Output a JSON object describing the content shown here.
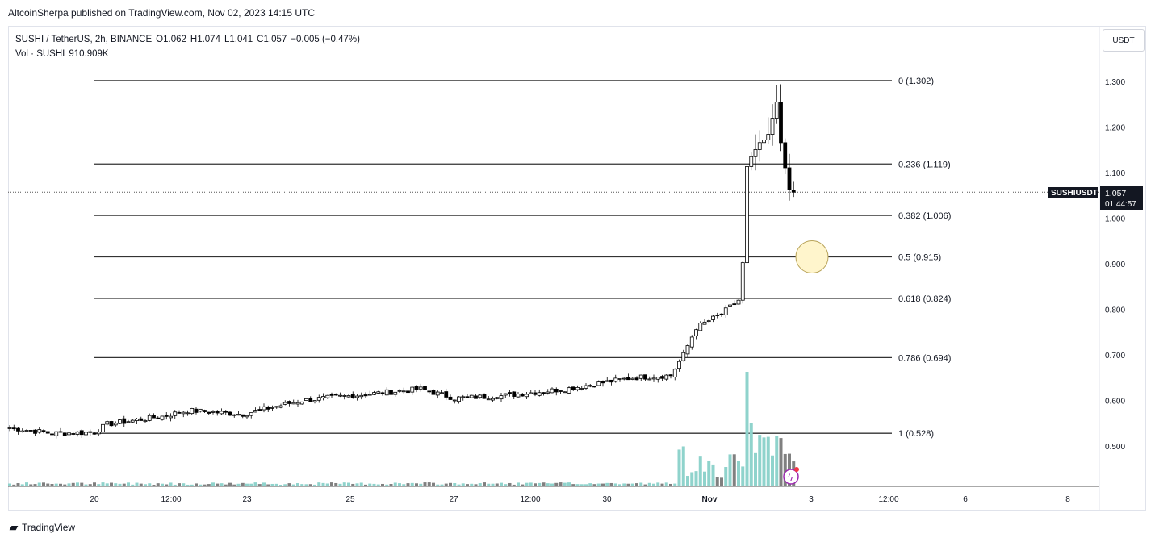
{
  "header": {
    "published": "AltcoinSherpa published on TradingView.com, Nov 02, 2023 14:15 UTC"
  },
  "legend": {
    "symbol": "SUSHI / TetherUS, 2h, BINANCE",
    "open": "O1.062",
    "high": "H1.074",
    "low": "L1.041",
    "close": "C1.057",
    "change": "−0.005 (−0.47%)",
    "volume_label": "Vol · SUSHI",
    "volume_value": "910.909K"
  },
  "currency_button": "USDT",
  "price_tag": {
    "symbol": "SUSHIUSDT",
    "price": "1.057",
    "countdown": "01:44:57"
  },
  "footer": {
    "brand": "TradingView"
  },
  "colors": {
    "up": "#ffffff",
    "down": "#000000",
    "vol_up": "#8fd3cc",
    "vol_down": "#808080",
    "fib": "#333333",
    "circle": "#fff5cc"
  },
  "chart_data": {
    "type": "candlestick",
    "ylim": [
      0.43,
      1.33
    ],
    "y_ticks": [
      "1.300",
      "1.200",
      "1.100",
      "1.000",
      "0.900",
      "0.800",
      "0.700",
      "0.600",
      "0.500"
    ],
    "x_ticks": [
      "20",
      "12:00",
      "23",
      "25",
      "27",
      "12:00",
      "30",
      "Nov",
      "3",
      "12:00",
      "6",
      "8"
    ],
    "fib_levels": [
      {
        "ratio": "0",
        "price": 1.302,
        "label": "0 (1.302)"
      },
      {
        "ratio": "0.236",
        "price": 1.119,
        "label": "0.236 (1.119)"
      },
      {
        "ratio": "0.382",
        "price": 1.006,
        "label": "0.382 (1.006)"
      },
      {
        "ratio": "0.5",
        "price": 0.915,
        "label": "0.5 (0.915)"
      },
      {
        "ratio": "0.618",
        "price": 0.824,
        "label": "0.618 (0.824)"
      },
      {
        "ratio": "0.786",
        "price": 0.694,
        "label": "0.786 (0.694)"
      },
      {
        "ratio": "1",
        "price": 0.528,
        "label": "1 (0.528)"
      }
    ],
    "highlight_price": 0.915,
    "close_path": [
      [
        0,
        0.54
      ],
      [
        10,
        0.528
      ],
      [
        20,
        0.53
      ],
      [
        23,
        0.548
      ],
      [
        36,
        0.565
      ],
      [
        42,
        0.578
      ],
      [
        55,
        0.57
      ],
      [
        69,
        0.6
      ],
      [
        80,
        0.61
      ],
      [
        97,
        0.625
      ],
      [
        105,
        0.605
      ],
      [
        116,
        0.61
      ],
      [
        131,
        0.625
      ],
      [
        147,
        0.65
      ],
      [
        156,
        0.655
      ],
      [
        159,
        0.7
      ],
      [
        162,
        0.76
      ],
      [
        168,
        0.79
      ],
      [
        172,
        0.82
      ],
      [
        173,
        0.9
      ],
      [
        174,
        1.11
      ],
      [
        176,
        1.15
      ],
      [
        179,
        1.18
      ],
      [
        181,
        1.26
      ],
      [
        182,
        1.16
      ],
      [
        184,
        1.06
      ],
      [
        185,
        1.057
      ]
    ],
    "last_price": 1.057
  }
}
